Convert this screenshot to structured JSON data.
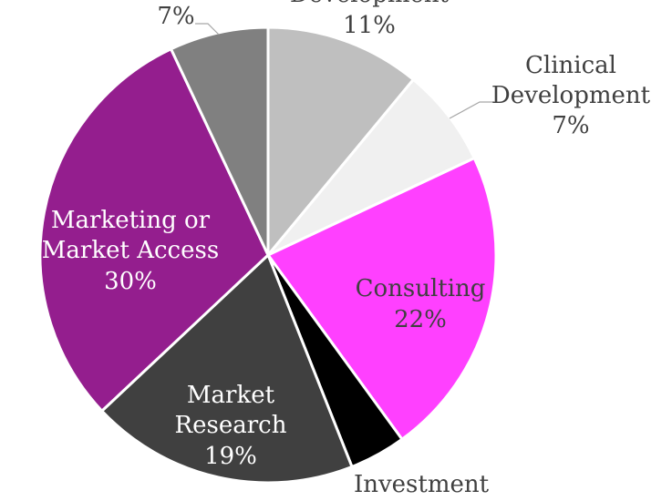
{
  "chart_data": {
    "type": "pie",
    "slices": [
      {
        "label": "Development",
        "value": 11,
        "value_label": "11%",
        "color": "#bfbfbf"
      },
      {
        "label": "Clinical Development",
        "value": 7,
        "value_label": "7%",
        "color": "#f0f0f0"
      },
      {
        "label": "Consulting",
        "value": 22,
        "value_label": "22%",
        "color": "#ff40ff"
      },
      {
        "label": "Investment",
        "value": 4,
        "value_label": "",
        "color": "#000000"
      },
      {
        "label": "Market Research",
        "value": 19,
        "value_label": "19%",
        "color": "#404040"
      },
      {
        "label": "Marketing or Market Access",
        "value": 30,
        "value_label": "30%",
        "color": "#941e8e"
      },
      {
        "label": "",
        "value": 7,
        "value_label": "7%",
        "color": "#808080"
      }
    ]
  }
}
